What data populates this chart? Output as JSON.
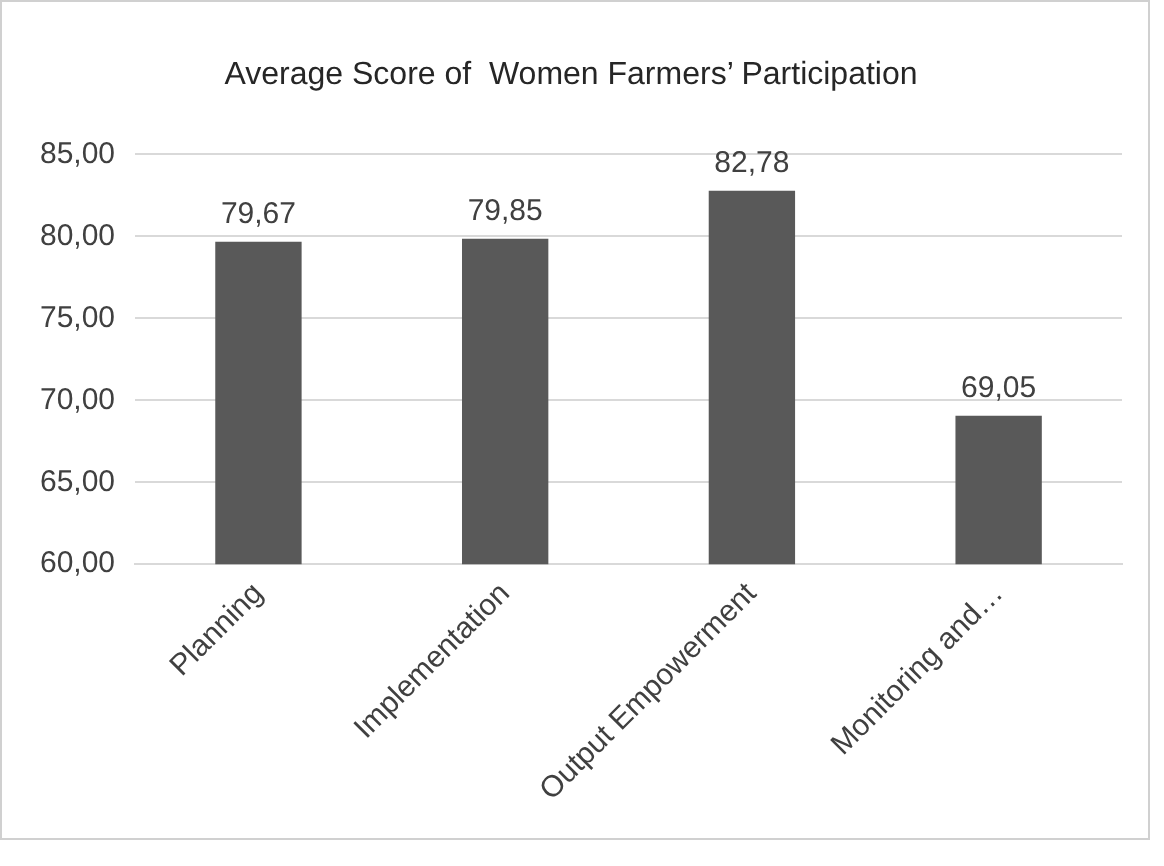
{
  "chart_data": {
    "type": "bar",
    "title": "Average Score of  Women Farmers’ Participation",
    "categories": [
      "Planning",
      "Implementation",
      "Output Empowerment",
      "Monitoring and…"
    ],
    "values": [
      79.67,
      79.85,
      82.78,
      69.05
    ],
    "value_labels": [
      "79,67",
      "79,85",
      "82,78",
      "69,05"
    ],
    "color": "#595959",
    "ylim": [
      60,
      85
    ],
    "yticks": [
      {
        "value": 60,
        "label": "60,00"
      },
      {
        "value": 65,
        "label": "65,00"
      },
      {
        "value": 70,
        "label": "70,00"
      },
      {
        "value": 75,
        "label": "75,00"
      },
      {
        "value": 80,
        "label": "80,00"
      },
      {
        "value": 85,
        "label": "85,00"
      }
    ],
    "grid": "y",
    "legend": false
  }
}
